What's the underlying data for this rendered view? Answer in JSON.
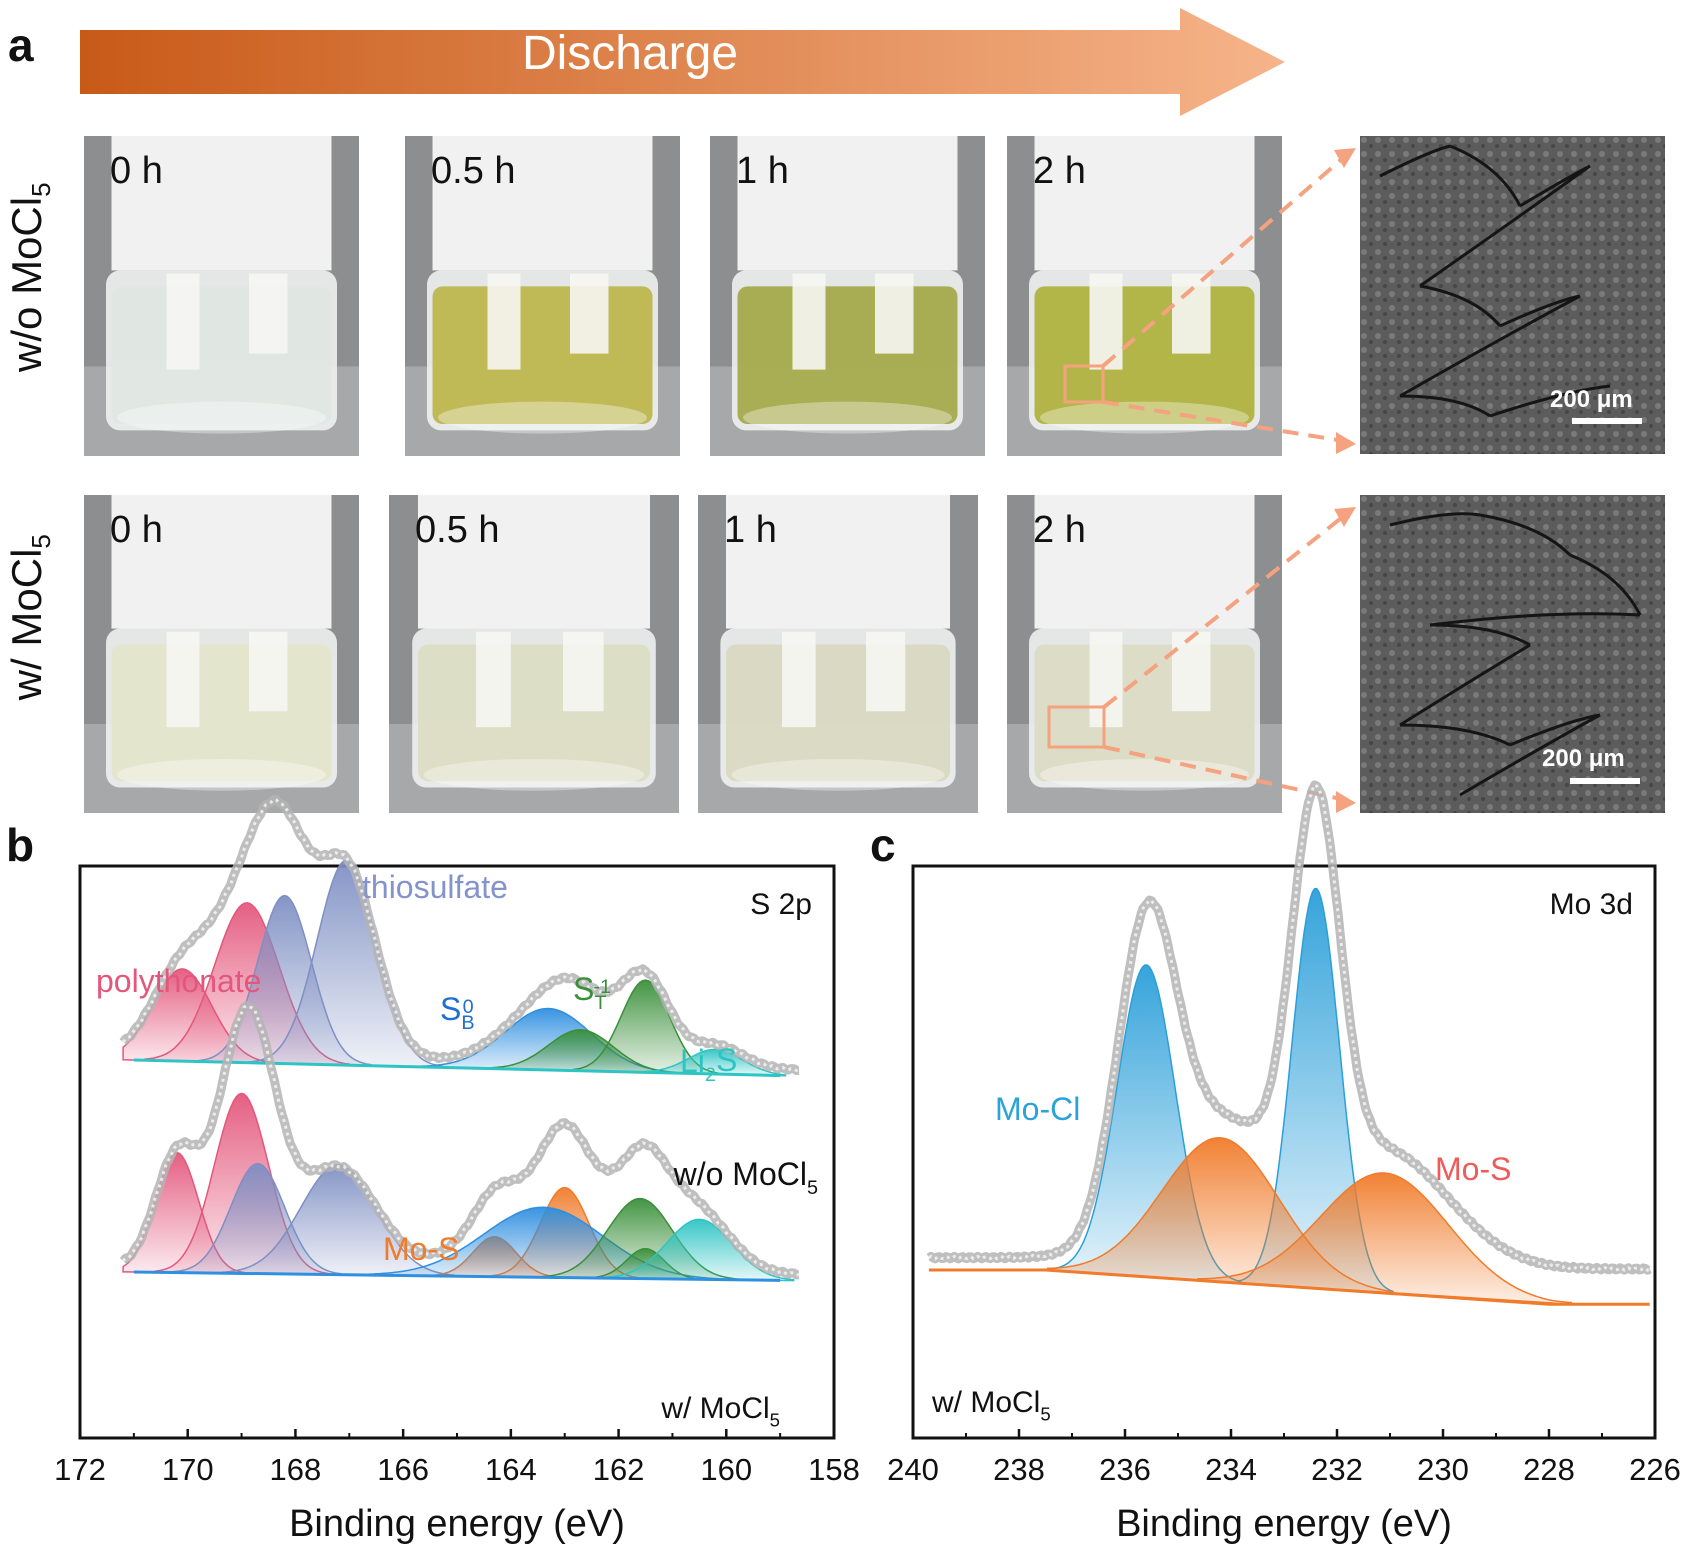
{
  "panel_a": {
    "label": "a",
    "arrow_text": "Discharge",
    "rows": [
      {
        "label_main": "w/o MoCl",
        "label_sub": "5",
        "times": [
          "0 h",
          "0.5 h",
          "1 h",
          "2 h"
        ],
        "liquid_colors": [
          "#dfe6e2",
          "#b8b23c",
          "#9ea23a",
          "#a9ac2c"
        ],
        "scale_label": "200 μm"
      },
      {
        "label_main": "w/ MoCl",
        "label_sub": "5",
        "times": [
          "0 h",
          "0.5 h",
          "1 h",
          "2 h"
        ],
        "liquid_colors": [
          "#e3e4c8",
          "#dcdcc0",
          "#d8d7bd",
          "#dad9c1"
        ],
        "scale_label": "200 μm"
      }
    ],
    "accent_color": "#f4a27f"
  },
  "chart_data": [
    {
      "panel": "b",
      "type": "area",
      "title": "S 2p",
      "xlabel": "Binding energy (eV)",
      "xlim": [
        172,
        158
      ],
      "x_ticks": [
        172,
        170,
        168,
        166,
        164,
        162,
        160,
        158
      ],
      "stacks": [
        {
          "name": "w/o MoCl5",
          "envelope_color": "#b4b4b4",
          "peaks": [
            {
              "name": "polythonate",
              "center": 170.1,
              "height": 0.45,
              "width": 0.55,
              "color": "#e4577c"
            },
            {
              "name": "polythonate",
              "center": 168.9,
              "height": 0.78,
              "width": 0.6,
              "color": "#e4577c"
            },
            {
              "name": "thiosulfate",
              "center": 168.2,
              "height": 0.82,
              "width": 0.5,
              "color": "#7e8fc3"
            },
            {
              "name": "thiosulfate",
              "center": 167.05,
              "height": 1.0,
              "width": 0.55,
              "color": "#7e8fc3"
            },
            {
              "name": "S_B^0",
              "center": 163.3,
              "height": 0.3,
              "width": 0.8,
              "color": "#2f8fe0"
            },
            {
              "name": "S_T^-1",
              "center": 162.7,
              "height": 0.2,
              "width": 0.6,
              "color": "#3a8f3a"
            },
            {
              "name": "S_T^-1",
              "center": 161.5,
              "height": 0.45,
              "width": 0.45,
              "color": "#3a8f3a"
            },
            {
              "name": "Li2S",
              "center": 160.2,
              "height": 0.12,
              "width": 0.5,
              "color": "#2ec4c4"
            }
          ],
          "labels": [
            {
              "text": "polythonate",
              "color": "#e4577c"
            },
            {
              "text": "thiosulfate",
              "color": "#8493cc"
            },
            {
              "text": "S",
              "sub": "B",
              "sup": "0",
              "color": "#1f6fd0"
            },
            {
              "text": "S",
              "sub": "T",
              "sup": "-1",
              "color": "#3a8f3a"
            },
            {
              "text": "Li",
              "sub": "2",
              "tail": "S",
              "color": "#2ec4c4"
            }
          ],
          "sample_label": {
            "main": "w/o MoCl",
            "sub": "5"
          }
        },
        {
          "name": "w/ MoCl5",
          "envelope_color": "#b4b4b4",
          "peaks": [
            {
              "name": "polythonate",
              "center": 170.2,
              "height": 0.6,
              "width": 0.4,
              "color": "#e4577c"
            },
            {
              "name": "polythonate",
              "center": 169.0,
              "height": 0.9,
              "width": 0.5,
              "color": "#e4577c"
            },
            {
              "name": "thiosulfate",
              "center": 168.7,
              "height": 0.55,
              "width": 0.5,
              "color": "#7e8fc3"
            },
            {
              "name": "thiosulfate",
              "center": 167.2,
              "height": 0.55,
              "width": 0.7,
              "color": "#7e8fc3"
            },
            {
              "name": "Mo-S",
              "center": 164.3,
              "height": 0.2,
              "width": 0.4,
              "color": "#f07b2a"
            },
            {
              "name": "Mo-S",
              "center": 163.0,
              "height": 0.45,
              "width": 0.45,
              "color": "#f07b2a"
            },
            {
              "name": "S_B^0",
              "center": 163.4,
              "height": 0.35,
              "width": 1.1,
              "color": "#2f8fe0"
            },
            {
              "name": "S_T^-1",
              "center": 161.6,
              "height": 0.4,
              "width": 0.6,
              "color": "#3a8f3a"
            },
            {
              "name": "S_T^-1",
              "center": 161.5,
              "height": 0.15,
              "width": 0.35,
              "color": "#3a8f3a"
            },
            {
              "name": "Li2S",
              "center": 160.5,
              "height": 0.3,
              "width": 0.6,
              "color": "#2ec4c4"
            }
          ],
          "labels": [
            {
              "text": "Mo-S",
              "color": "#f07b2a"
            }
          ],
          "sample_label": {
            "main": "w/ MoCl",
            "sub": "5"
          }
        }
      ]
    },
    {
      "panel": "c",
      "type": "area",
      "title": "Mo 3d",
      "xlabel": "Binding energy (eV)",
      "xlim": [
        240,
        226
      ],
      "x_ticks": [
        240,
        238,
        236,
        234,
        232,
        230,
        228,
        226
      ],
      "envelope_color": "#b4b4b4",
      "peaks": [
        {
          "name": "Mo-Cl",
          "center": 235.6,
          "height": 0.78,
          "width": 0.55,
          "color": "#2b9fd9"
        },
        {
          "name": "Mo-Cl",
          "center": 232.4,
          "height": 1.0,
          "width": 0.45,
          "color": "#2b9fd9"
        },
        {
          "name": "Mo-S",
          "center": 234.2,
          "height": 0.36,
          "width": 1.1,
          "color": "#f07b2a"
        },
        {
          "name": "Mo-S",
          "center": 231.1,
          "height": 0.3,
          "width": 1.2,
          "color": "#f07b2a"
        }
      ],
      "labels": [
        {
          "text": "Mo-Cl",
          "color": "#29a3d8"
        },
        {
          "text": "Mo-S",
          "color": "#ef5a5a"
        }
      ],
      "sample_label": {
        "main": "w/ MoCl",
        "sub": "5"
      }
    }
  ],
  "panel_labels": {
    "b": "b",
    "c": "c"
  }
}
